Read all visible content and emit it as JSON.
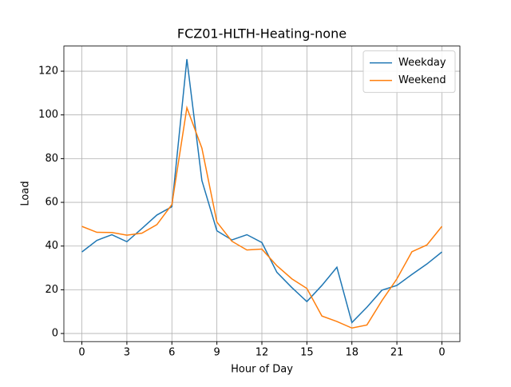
{
  "chart_data": {
    "type": "line",
    "title": "FCZ01-HLTH-Heating-none",
    "x_label": "Hour of Day",
    "y_label": "Load",
    "x": [
      0,
      1,
      2,
      3,
      4,
      5,
      6,
      7,
      8,
      9,
      10,
      11,
      12,
      13,
      14,
      15,
      16,
      17,
      18,
      19,
      20,
      21,
      22,
      23,
      24
    ],
    "series": [
      {
        "name": "Weekday",
        "color": "#1f77b4",
        "values": [
          37.3,
          42.6,
          45.2,
          42,
          48,
          54.2,
          58,
          125.5,
          70,
          47,
          42.8,
          45.2,
          41.6,
          28,
          21,
          14.6,
          22,
          30.3,
          5,
          12,
          19.8,
          22,
          27,
          31.8,
          37.3
        ]
      },
      {
        "name": "Weekend",
        "color": "#ff7f0e",
        "values": [
          49,
          46.3,
          46.2,
          45,
          45.9,
          49.8,
          59,
          103.3,
          84.8,
          51,
          42.2,
          38.2,
          38.6,
          31,
          25,
          20.6,
          8,
          5.5,
          2.5,
          3.9,
          15,
          25,
          37.4,
          40.5,
          49
        ]
      }
    ],
    "xlim": [
      -1.2,
      25.2
    ],
    "xticks": [
      0,
      3,
      6,
      9,
      12,
      15,
      18,
      21,
      {
        "value": 24,
        "label": "0"
      }
    ],
    "ylim": [
      -3.7,
      131.5
    ],
    "yticks": [
      0,
      20,
      40,
      60,
      80,
      100,
      120
    ],
    "grid": true,
    "legend": "upper right"
  }
}
